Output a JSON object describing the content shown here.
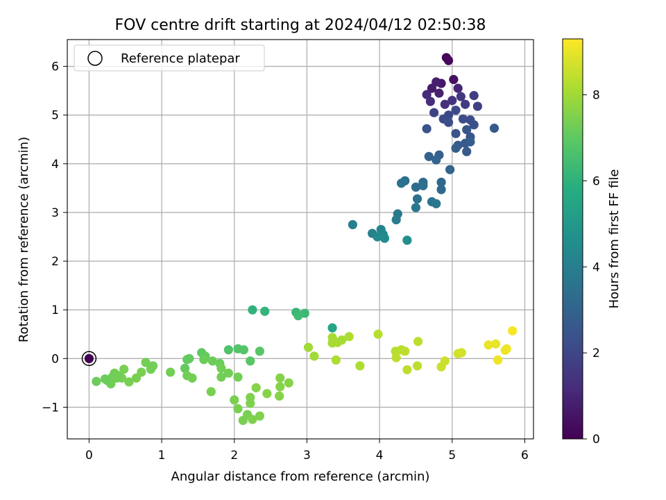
{
  "chart_data": {
    "type": "scatter",
    "title": "FOV centre drift starting at 2024/04/12 02:50:38",
    "xlabel": "Angular distance from reference (arcmin)",
    "ylabel": "Rotation from reference (arcmin)",
    "xlim": [
      -0.3,
      6.12
    ],
    "ylim": [
      -1.65,
      6.55
    ],
    "xticks": [
      0,
      1,
      2,
      3,
      4,
      5,
      6
    ],
    "yticks": [
      -1,
      0,
      1,
      2,
      3,
      4,
      5,
      6
    ],
    "grid": true,
    "legend": {
      "placement": "upper left",
      "entries": [
        "Reference platepar"
      ]
    },
    "reference_point": {
      "x": 0,
      "y": 0
    },
    "colorbar": {
      "label": "Hours from first FF file",
      "colormap": "viridis",
      "range": [
        0,
        9.3
      ],
      "ticks": [
        0,
        2,
        4,
        6,
        8
      ]
    },
    "series": [
      {
        "columns": [
          "x",
          "y",
          "hours"
        ],
        "points": [
          [
            4.92,
            6.18,
            0.1
          ],
          [
            4.95,
            6.12,
            0.2
          ],
          [
            5.02,
            5.73,
            0.4
          ],
          [
            4.85,
            5.65,
            0.6
          ],
          [
            4.72,
            5.55,
            0.7
          ],
          [
            4.78,
            5.68,
            0.8
          ],
          [
            4.82,
            5.45,
            0.9
          ],
          [
            5.08,
            5.55,
            1.0
          ],
          [
            4.65,
            5.42,
            1.1
          ],
          [
            4.7,
            5.28,
            1.2
          ],
          [
            4.9,
            5.22,
            1.3
          ],
          [
            5.0,
            5.3,
            1.4
          ],
          [
            5.12,
            5.38,
            1.5
          ],
          [
            5.18,
            5.22,
            1.6
          ],
          [
            5.3,
            5.4,
            1.7
          ],
          [
            5.35,
            5.18,
            1.8
          ],
          [
            4.75,
            5.05,
            1.9
          ],
          [
            4.95,
            5.0,
            2.0
          ],
          [
            5.05,
            5.1,
            2.1
          ],
          [
            4.88,
            4.92,
            2.1
          ],
          [
            5.15,
            4.92,
            2.2
          ],
          [
            5.25,
            4.9,
            2.2
          ],
          [
            5.3,
            4.8,
            2.3
          ],
          [
            4.95,
            4.85,
            2.3
          ],
          [
            4.65,
            4.72,
            2.4
          ],
          [
            5.05,
            4.62,
            2.4
          ],
          [
            5.2,
            4.7,
            2.5
          ],
          [
            5.25,
            4.55,
            2.5
          ],
          [
            5.58,
            4.73,
            2.6
          ],
          [
            5.18,
            4.42,
            2.6
          ],
          [
            5.08,
            4.38,
            2.7
          ],
          [
            5.2,
            4.25,
            2.7
          ],
          [
            5.05,
            4.32,
            2.8
          ],
          [
            5.25,
            4.45,
            2.8
          ],
          [
            4.82,
            4.18,
            2.9
          ],
          [
            4.68,
            4.15,
            2.9
          ],
          [
            4.78,
            4.08,
            3.0
          ],
          [
            4.97,
            3.88,
            3.0
          ],
          [
            4.85,
            3.62,
            3.1
          ],
          [
            4.85,
            3.47,
            3.2
          ],
          [
            4.6,
            3.62,
            3.3
          ],
          [
            4.5,
            3.52,
            3.3
          ],
          [
            4.6,
            3.55,
            3.4
          ],
          [
            4.35,
            3.65,
            3.4
          ],
          [
            4.3,
            3.6,
            3.5
          ],
          [
            4.52,
            3.28,
            3.5
          ],
          [
            4.72,
            3.22,
            3.6
          ],
          [
            4.78,
            3.18,
            3.7
          ],
          [
            4.5,
            3.1,
            3.7
          ],
          [
            4.25,
            2.97,
            3.8
          ],
          [
            4.23,
            2.85,
            3.9
          ],
          [
            3.63,
            2.75,
            4.0
          ],
          [
            3.9,
            2.57,
            4.1
          ],
          [
            4.02,
            2.65,
            4.2
          ],
          [
            4.05,
            2.55,
            4.3
          ],
          [
            3.97,
            2.5,
            4.4
          ],
          [
            4.07,
            2.47,
            4.5
          ],
          [
            4.38,
            2.43,
            4.6
          ],
          [
            3.35,
            0.63,
            5.5
          ],
          [
            2.25,
            1.0,
            6.0
          ],
          [
            2.42,
            0.97,
            6.1
          ],
          [
            2.85,
            0.95,
            6.2
          ],
          [
            2.97,
            0.93,
            6.3
          ],
          [
            2.88,
            0.88,
            6.4
          ],
          [
            1.92,
            0.18,
            6.7
          ],
          [
            2.05,
            0.2,
            6.8
          ],
          [
            2.13,
            0.18,
            6.8
          ],
          [
            2.35,
            0.15,
            6.9
          ],
          [
            2.22,
            -0.05,
            6.9
          ],
          [
            1.55,
            0.12,
            7.0
          ],
          [
            1.6,
            0.05,
            7.1
          ],
          [
            1.35,
            -0.02,
            7.1
          ],
          [
            1.38,
            0.0,
            7.1
          ],
          [
            1.32,
            -0.2,
            7.1
          ],
          [
            1.7,
            -0.05,
            7.2
          ],
          [
            1.58,
            -0.02,
            7.2
          ],
          [
            1.8,
            -0.1,
            7.2
          ],
          [
            1.82,
            -0.2,
            7.3
          ],
          [
            1.35,
            -0.35,
            7.3
          ],
          [
            1.42,
            -0.4,
            7.3
          ],
          [
            1.12,
            -0.28,
            7.3
          ],
          [
            0.78,
            -0.08,
            7.3
          ],
          [
            0.88,
            -0.15,
            7.3
          ],
          [
            0.85,
            -0.22,
            7.3
          ],
          [
            0.72,
            -0.28,
            7.4
          ],
          [
            0.65,
            -0.4,
            7.4
          ],
          [
            0.55,
            -0.48,
            7.4
          ],
          [
            0.48,
            -0.22,
            7.4
          ],
          [
            0.45,
            -0.4,
            7.4
          ],
          [
            0.4,
            -0.35,
            7.3
          ],
          [
            0.35,
            -0.3,
            7.3
          ],
          [
            0.32,
            -0.38,
            7.3
          ],
          [
            0.3,
            -0.45,
            7.3
          ],
          [
            0.3,
            -0.52,
            7.3
          ],
          [
            0.25,
            -0.45,
            7.2
          ],
          [
            0.22,
            -0.42,
            7.2
          ],
          [
            0.1,
            -0.47,
            7.2
          ],
          [
            0.38,
            -0.4,
            7.3
          ],
          [
            1.92,
            -0.3,
            7.3
          ],
          [
            1.82,
            -0.38,
            7.3
          ],
          [
            2.05,
            -0.38,
            7.3
          ],
          [
            1.68,
            -0.68,
            7.4
          ],
          [
            2.0,
            -0.85,
            7.4
          ],
          [
            2.05,
            -1.03,
            7.4
          ],
          [
            2.12,
            -1.27,
            7.4
          ],
          [
            2.18,
            -1.15,
            7.4
          ],
          [
            2.25,
            -1.25,
            7.5
          ],
          [
            2.35,
            -1.18,
            7.5
          ],
          [
            2.22,
            -0.8,
            7.5
          ],
          [
            2.22,
            -0.92,
            7.5
          ],
          [
            2.3,
            -0.6,
            7.6
          ],
          [
            2.45,
            -0.72,
            7.6
          ],
          [
            2.62,
            -0.77,
            7.6
          ],
          [
            2.63,
            -0.58,
            7.6
          ],
          [
            2.63,
            -0.4,
            7.6
          ],
          [
            2.75,
            -0.5,
            7.6
          ],
          [
            3.02,
            0.23,
            8.0
          ],
          [
            3.1,
            0.05,
            8.0
          ],
          [
            3.35,
            0.32,
            8.1
          ],
          [
            3.35,
            0.43,
            8.1
          ],
          [
            3.42,
            0.33,
            8.1
          ],
          [
            3.48,
            0.38,
            8.1
          ],
          [
            3.58,
            0.45,
            8.2
          ],
          [
            3.4,
            -0.03,
            8.2
          ],
          [
            3.73,
            -0.15,
            8.2
          ],
          [
            3.98,
            0.5,
            8.3
          ],
          [
            4.22,
            0.15,
            8.3
          ],
          [
            4.3,
            0.18,
            8.3
          ],
          [
            4.35,
            0.15,
            8.4
          ],
          [
            4.23,
            0.02,
            8.4
          ],
          [
            4.38,
            -0.23,
            8.4
          ],
          [
            4.52,
            -0.15,
            8.4
          ],
          [
            4.53,
            0.35,
            8.4
          ],
          [
            4.85,
            -0.17,
            8.6
          ],
          [
            4.9,
            -0.05,
            8.6
          ],
          [
            5.08,
            0.1,
            8.7
          ],
          [
            5.13,
            0.12,
            8.7
          ],
          [
            5.5,
            0.28,
            9.0
          ],
          [
            5.6,
            0.3,
            9.0
          ],
          [
            5.63,
            -0.03,
            9.1
          ],
          [
            5.75,
            0.2,
            9.1
          ],
          [
            5.73,
            0.17,
            9.1
          ],
          [
            5.83,
            0.57,
            9.2
          ],
          [
            0.0,
            0.0,
            0.0
          ]
        ]
      }
    ]
  }
}
